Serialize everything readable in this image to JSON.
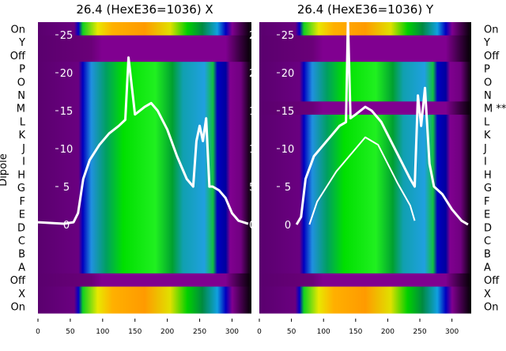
{
  "chart_data": [
    {
      "type": "heatmap",
      "title": "26.4 (HexE36=1036) X",
      "ylabel": "Dipole",
      "xlim": [
        0,
        330
      ],
      "xticks": [
        0,
        50,
        100,
        150,
        200,
        250,
        300
      ],
      "row_labels": [
        "On",
        "Y",
        "Off",
        "P",
        "O",
        "N",
        "M",
        "L",
        "K",
        "J",
        "I",
        "H",
        "G",
        "F",
        "E",
        "D",
        "C",
        "B",
        "A",
        "Off",
        "X",
        "On"
      ],
      "row_types": [
        "on",
        "off",
        "off",
        "dip",
        "dip",
        "dip",
        "dip",
        "dip",
        "dip",
        "dip",
        "dip",
        "dip",
        "dip",
        "dip",
        "dip",
        "dip",
        "dip",
        "dip",
        "dip",
        "off",
        "on",
        "on"
      ],
      "inner_ticks": [
        0,
        5,
        10,
        15,
        20,
        25
      ],
      "inner_ylim": [
        0,
        25
      ],
      "series": [
        {
          "name": "profile",
          "x": [
            0,
            40,
            55,
            62,
            70,
            80,
            95,
            110,
            125,
            135,
            140,
            150,
            165,
            175,
            185,
            200,
            215,
            230,
            240,
            245,
            250,
            255,
            260,
            265,
            270,
            280,
            290,
            300,
            310,
            325
          ],
          "y": [
            0.3,
            0.1,
            0.3,
            1.5,
            6,
            8.5,
            10.5,
            12,
            13,
            13.8,
            22,
            14.5,
            15.5,
            16,
            15,
            12.5,
            9,
            6,
            5,
            11,
            13,
            11,
            14,
            5,
            5,
            4.5,
            3.5,
            1.5,
            0.5,
            0.1
          ]
        }
      ]
    },
    {
      "type": "heatmap",
      "title": "26.4 (HexE36=1036) Y",
      "xlim": [
        0,
        330
      ],
      "xticks": [
        0,
        50,
        100,
        150,
        200,
        250,
        300
      ],
      "row_labels": [
        "On",
        "Y",
        "Off",
        "P",
        "O",
        "N",
        "M **",
        "L",
        "K",
        "J",
        "I",
        "H",
        "G",
        "F",
        "E",
        "D",
        "C",
        "B",
        "A",
        "Off",
        "X",
        "On"
      ],
      "row_types": [
        "on",
        "off",
        "off",
        "dip",
        "dip",
        "dip",
        "off",
        "dip",
        "dip",
        "dip",
        "dip",
        "dip",
        "dip",
        "dip",
        "dip",
        "dip",
        "dip",
        "dip",
        "dip",
        "off",
        "on",
        "on"
      ],
      "inner_ticks": [
        0,
        5,
        10,
        15,
        20,
        25
      ],
      "inner_ylim": [
        0,
        25
      ],
      "series": [
        {
          "name": "profile",
          "x": [
            58,
            65,
            72,
            85,
            100,
            115,
            125,
            135,
            138,
            142,
            150,
            165,
            175,
            190,
            205,
            220,
            235,
            242,
            247,
            252,
            258,
            265,
            272,
            285,
            300,
            315,
            325
          ],
          "y": [
            0,
            1,
            6,
            9,
            10.5,
            12,
            13,
            13.5,
            27,
            14,
            14.5,
            15.5,
            15,
            13.5,
            11,
            8.5,
            6,
            5,
            17,
            13,
            18,
            8,
            5,
            4,
            2,
            0.5,
            0
          ]
        },
        {
          "name": "lower-profile",
          "x": [
            78,
            90,
            105,
            120,
            135,
            150,
            165,
            175,
            185,
            200,
            215,
            225,
            235,
            242
          ],
          "y": [
            0,
            3,
            5,
            7,
            8.5,
            10,
            11.5,
            11,
            10.5,
            8,
            5.5,
            4,
            2.5,
            0.5
          ]
        }
      ]
    }
  ]
}
